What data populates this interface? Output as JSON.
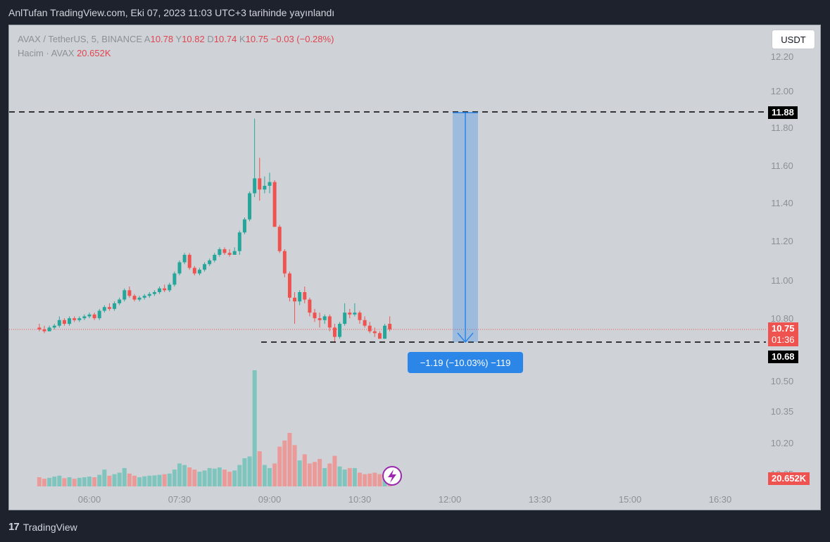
{
  "header": {
    "text": "AnlTufan TradingView.com, Eki 07, 2023 11:03 UTC+3 tarihinde yayınlandı"
  },
  "legend": {
    "symbol": "AVAX / TetherUS, 5, BINANCE",
    "open_label": "A",
    "open": "10.78",
    "high_label": "Y",
    "high": "10.82",
    "low_label": "D",
    "low": "10.74",
    "close_label": "K",
    "close": "10.75",
    "change": "−0.03 (−0.28%)",
    "volume_label": "Hacim · AVAX",
    "volume_value": "20.652K"
  },
  "currency_button": "USDT",
  "price_axis": [
    "12.20",
    "12.00",
    "11.80",
    "11.60",
    "11.40",
    "11.20",
    "11.00",
    "10.80",
    "10.50",
    "10.35",
    "10.20",
    "10.05"
  ],
  "time_axis": [
    "06:00",
    "07:30",
    "09:00",
    "10:30",
    "12:00",
    "13:30",
    "15:00",
    "16:30"
  ],
  "price_tags": {
    "high_line": "11.88",
    "last_price": "10.75",
    "countdown": "01:36",
    "low_line": "10.68",
    "volume": "20.652K"
  },
  "measure_label": "−1.19 (−10.03%) −119",
  "footer": {
    "brand": "TradingView"
  },
  "colors": {
    "up": "#26a69a",
    "down": "#ef5350",
    "measure": "#2c86e8",
    "background": "#cfd3d7"
  },
  "chart_data": {
    "type": "candlestick",
    "symbol": "AVAX / TetherUS",
    "interval": "5",
    "y_axis_range": [
      10.3,
      12.25
    ],
    "candles": [
      {
        "t": "05:10",
        "o": 10.76,
        "h": 10.78,
        "l": 10.74,
        "c": 10.75
      },
      {
        "t": "05:15",
        "o": 10.75,
        "h": 10.77,
        "l": 10.73,
        "c": 10.74
      },
      {
        "t": "05:20",
        "o": 10.74,
        "h": 10.77,
        "l": 10.74,
        "c": 10.76
      },
      {
        "t": "05:25",
        "o": 10.76,
        "h": 10.78,
        "l": 10.75,
        "c": 10.77
      },
      {
        "t": "05:30",
        "o": 10.77,
        "h": 10.82,
        "l": 10.76,
        "c": 10.8
      },
      {
        "t": "05:35",
        "o": 10.8,
        "h": 10.81,
        "l": 10.77,
        "c": 10.78
      },
      {
        "t": "05:40",
        "o": 10.78,
        "h": 10.82,
        "l": 10.77,
        "c": 10.81
      },
      {
        "t": "05:45",
        "o": 10.81,
        "h": 10.82,
        "l": 10.79,
        "c": 10.8
      },
      {
        "t": "05:50",
        "o": 10.8,
        "h": 10.82,
        "l": 10.79,
        "c": 10.81
      },
      {
        "t": "05:55",
        "o": 10.81,
        "h": 10.83,
        "l": 10.8,
        "c": 10.82
      },
      {
        "t": "06:00",
        "o": 10.82,
        "h": 10.84,
        "l": 10.81,
        "c": 10.83
      },
      {
        "t": "06:05",
        "o": 10.83,
        "h": 10.84,
        "l": 10.8,
        "c": 10.81
      },
      {
        "t": "06:10",
        "o": 10.81,
        "h": 10.86,
        "l": 10.8,
        "c": 10.85
      },
      {
        "t": "06:15",
        "o": 10.85,
        "h": 10.88,
        "l": 10.84,
        "c": 10.87
      },
      {
        "t": "06:20",
        "o": 10.87,
        "h": 10.89,
        "l": 10.85,
        "c": 10.86
      },
      {
        "t": "06:25",
        "o": 10.86,
        "h": 10.9,
        "l": 10.85,
        "c": 10.89
      },
      {
        "t": "06:30",
        "o": 10.89,
        "h": 10.92,
        "l": 10.88,
        "c": 10.91
      },
      {
        "t": "06:35",
        "o": 10.91,
        "h": 10.97,
        "l": 10.9,
        "c": 10.96
      },
      {
        "t": "06:40",
        "o": 10.96,
        "h": 10.98,
        "l": 10.92,
        "c": 10.93
      },
      {
        "t": "06:45",
        "o": 10.93,
        "h": 10.94,
        "l": 10.9,
        "c": 10.91
      },
      {
        "t": "06:50",
        "o": 10.91,
        "h": 10.93,
        "l": 10.9,
        "c": 10.92
      },
      {
        "t": "06:55",
        "o": 10.92,
        "h": 10.94,
        "l": 10.91,
        "c": 10.93
      },
      {
        "t": "07:00",
        "o": 10.93,
        "h": 10.95,
        "l": 10.92,
        "c": 10.94
      },
      {
        "t": "07:05",
        "o": 10.94,
        "h": 10.96,
        "l": 10.93,
        "c": 10.95
      },
      {
        "t": "07:10",
        "o": 10.95,
        "h": 10.98,
        "l": 10.94,
        "c": 10.97
      },
      {
        "t": "07:15",
        "o": 10.97,
        "h": 10.99,
        "l": 10.95,
        "c": 10.96
      },
      {
        "t": "07:20",
        "o": 10.96,
        "h": 11.0,
        "l": 10.95,
        "c": 10.99
      },
      {
        "t": "07:25",
        "o": 10.99,
        "h": 11.06,
        "l": 10.98,
        "c": 11.05
      },
      {
        "t": "07:30",
        "o": 11.05,
        "h": 11.12,
        "l": 11.04,
        "c": 11.11
      },
      {
        "t": "07:35",
        "o": 11.11,
        "h": 11.16,
        "l": 11.1,
        "c": 11.15
      },
      {
        "t": "07:40",
        "o": 11.15,
        "h": 11.16,
        "l": 11.07,
        "c": 11.08
      },
      {
        "t": "07:45",
        "o": 11.08,
        "h": 11.09,
        "l": 11.04,
        "c": 11.05
      },
      {
        "t": "07:50",
        "o": 11.05,
        "h": 11.08,
        "l": 11.04,
        "c": 11.07
      },
      {
        "t": "07:55",
        "o": 11.07,
        "h": 11.11,
        "l": 11.06,
        "c": 11.1
      },
      {
        "t": "08:00",
        "o": 11.1,
        "h": 11.13,
        "l": 11.09,
        "c": 11.12
      },
      {
        "t": "08:05",
        "o": 11.12,
        "h": 11.16,
        "l": 11.11,
        "c": 11.15
      },
      {
        "t": "08:10",
        "o": 11.15,
        "h": 11.19,
        "l": 11.14,
        "c": 11.18
      },
      {
        "t": "08:15",
        "o": 11.18,
        "h": 11.19,
        "l": 11.15,
        "c": 11.16
      },
      {
        "t": "08:20",
        "o": 11.16,
        "h": 11.18,
        "l": 11.14,
        "c": 11.15
      },
      {
        "t": "08:25",
        "o": 11.15,
        "h": 11.19,
        "l": 11.15,
        "c": 11.17
      },
      {
        "t": "08:30",
        "o": 11.17,
        "h": 11.28,
        "l": 11.15,
        "c": 11.27
      },
      {
        "t": "08:35",
        "o": 11.27,
        "h": 11.35,
        "l": 11.26,
        "c": 11.34
      },
      {
        "t": "08:40",
        "o": 11.34,
        "h": 11.49,
        "l": 11.33,
        "c": 11.48
      },
      {
        "t": "08:45",
        "o": 11.48,
        "h": 11.88,
        "l": 11.46,
        "c": 11.56
      },
      {
        "t": "08:50",
        "o": 11.56,
        "h": 11.67,
        "l": 11.44,
        "c": 11.5
      },
      {
        "t": "08:55",
        "o": 11.5,
        "h": 11.57,
        "l": 11.48,
        "c": 11.52
      },
      {
        "t": "09:00",
        "o": 11.52,
        "h": 11.59,
        "l": 11.48,
        "c": 11.54
      },
      {
        "t": "09:05",
        "o": 11.54,
        "h": 11.55,
        "l": 11.3,
        "c": 11.3
      },
      {
        "t": "09:10",
        "o": 11.3,
        "h": 11.31,
        "l": 11.16,
        "c": 11.17
      },
      {
        "t": "09:15",
        "o": 11.17,
        "h": 11.18,
        "l": 11.03,
        "c": 11.05
      },
      {
        "t": "09:20",
        "o": 11.05,
        "h": 11.06,
        "l": 10.9,
        "c": 10.92
      },
      {
        "t": "09:25",
        "o": 10.92,
        "h": 10.95,
        "l": 10.78,
        "c": 10.9
      },
      {
        "t": "09:30",
        "o": 10.9,
        "h": 10.96,
        "l": 10.88,
        "c": 10.95
      },
      {
        "t": "09:35",
        "o": 10.95,
        "h": 10.98,
        "l": 10.89,
        "c": 10.91
      },
      {
        "t": "09:40",
        "o": 10.91,
        "h": 10.92,
        "l": 10.82,
        "c": 10.84
      },
      {
        "t": "09:45",
        "o": 10.84,
        "h": 10.86,
        "l": 10.79,
        "c": 10.81
      },
      {
        "t": "09:50",
        "o": 10.81,
        "h": 10.84,
        "l": 10.76,
        "c": 10.8
      },
      {
        "t": "09:55",
        "o": 10.8,
        "h": 10.83,
        "l": 10.78,
        "c": 10.82
      },
      {
        "t": "10:00",
        "o": 10.82,
        "h": 10.83,
        "l": 10.74,
        "c": 10.76
      },
      {
        "t": "10:05",
        "o": 10.76,
        "h": 10.78,
        "l": 10.68,
        "c": 10.71
      },
      {
        "t": "10:10",
        "o": 10.71,
        "h": 10.79,
        "l": 10.7,
        "c": 10.78
      },
      {
        "t": "10:15",
        "o": 10.78,
        "h": 10.89,
        "l": 10.77,
        "c": 10.84
      },
      {
        "t": "10:20",
        "o": 10.84,
        "h": 10.86,
        "l": 10.81,
        "c": 10.83
      },
      {
        "t": "10:25",
        "o": 10.83,
        "h": 10.89,
        "l": 10.82,
        "c": 10.84
      },
      {
        "t": "10:30",
        "o": 10.84,
        "h": 10.85,
        "l": 10.78,
        "c": 10.8
      },
      {
        "t": "10:35",
        "o": 10.8,
        "h": 10.82,
        "l": 10.76,
        "c": 10.77
      },
      {
        "t": "10:40",
        "o": 10.77,
        "h": 10.79,
        "l": 10.73,
        "c": 10.74
      },
      {
        "t": "10:45",
        "o": 10.74,
        "h": 10.76,
        "l": 10.71,
        "c": 10.73
      },
      {
        "t": "10:50",
        "o": 10.73,
        "h": 10.74,
        "l": 10.7,
        "c": 10.7
      },
      {
        "t": "10:55",
        "o": 10.7,
        "h": 10.78,
        "l": 10.7,
        "c": 10.77
      },
      {
        "t": "11:00",
        "o": 10.78,
        "h": 10.82,
        "l": 10.74,
        "c": 10.75
      }
    ],
    "volume": [
      30,
      25,
      28,
      32,
      35,
      27,
      30,
      25,
      28,
      30,
      32,
      30,
      38,
      55,
      35,
      40,
      45,
      60,
      42,
      35,
      30,
      33,
      35,
      36,
      38,
      40,
      42,
      55,
      75,
      70,
      62,
      55,
      48,
      52,
      60,
      58,
      62,
      55,
      48,
      52,
      70,
      92,
      98,
      380,
      115,
      70,
      60,
      75,
      130,
      150,
      175,
      135,
      85,
      105,
      75,
      80,
      90,
      60,
      75,
      100,
      65,
      55,
      60,
      60,
      45,
      40,
      42,
      45,
      40,
      45,
      30
    ],
    "volume_unit": "AVAX",
    "annotations": {
      "horizontal_lines": [
        11.88,
        10.68
      ],
      "measurement": {
        "from": 11.88,
        "to": 10.68,
        "change": -1.19,
        "percent": -10.03,
        "ticks": -119
      }
    }
  }
}
